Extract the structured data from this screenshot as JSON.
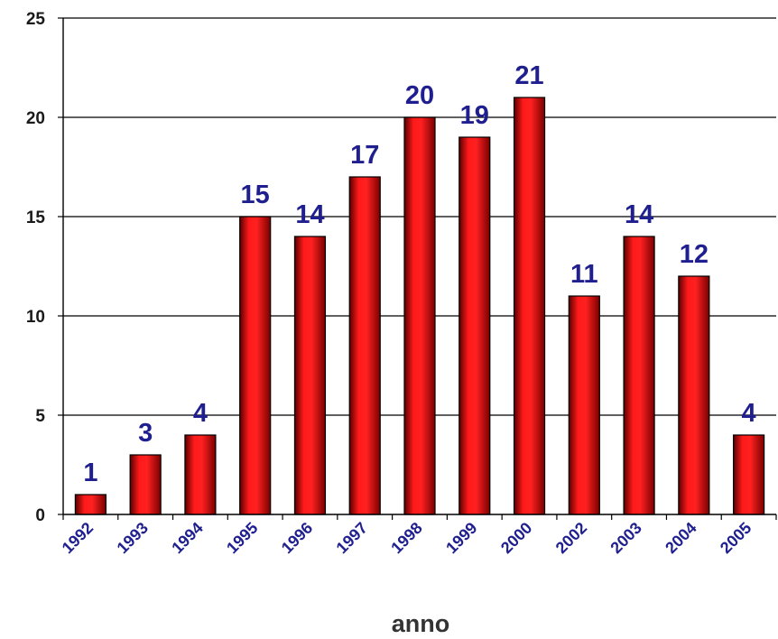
{
  "chart_data": {
    "type": "bar",
    "categories": [
      "1992",
      "1993",
      "1994",
      "1995",
      "1996",
      "1997",
      "1998",
      "1999",
      "2000",
      "2002",
      "2003",
      "2004",
      "2005"
    ],
    "values": [
      1,
      3,
      4,
      15,
      14,
      17,
      20,
      19,
      21,
      11,
      14,
      12,
      4
    ],
    "title": "",
    "xlabel": "anno",
    "ylabel": "",
    "ylim": [
      0,
      25
    ],
    "yticks": [
      0,
      5,
      10,
      15,
      20,
      25
    ],
    "grid": true,
    "data_labels": true,
    "colors": {
      "bar": "#e00000",
      "data_label": "#1f1f8f",
      "x_tick": "#1f1f8f",
      "y_tick": "#1a1a1a",
      "axis_label": "#333333"
    }
  }
}
